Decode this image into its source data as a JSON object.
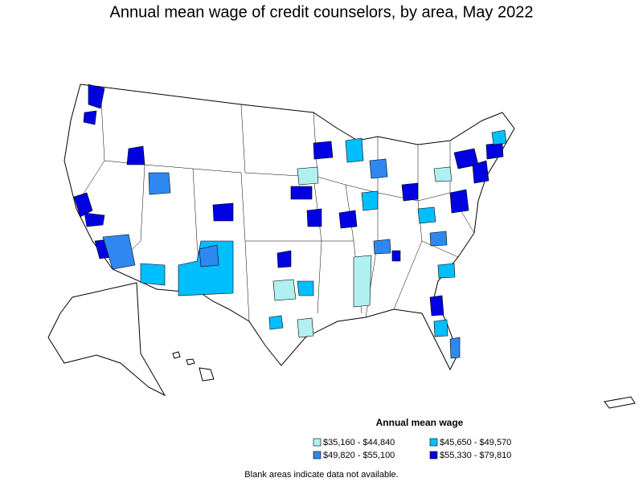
{
  "title": "Annual mean wage of credit counselors, by area, May 2022",
  "legend": {
    "title": "Annual mean wage",
    "items": [
      {
        "label": "$35,160 - $44,840",
        "color": "#b0f0f0"
      },
      {
        "label": "$45,650 - $49,570",
        "color": "#00bfff"
      },
      {
        "label": "$49,820 - $55,100",
        "color": "#2f88f0"
      },
      {
        "label": "$55,330 - $79,810",
        "color": "#0000e0"
      }
    ]
  },
  "footnote": "Blank areas indicate data not available."
}
